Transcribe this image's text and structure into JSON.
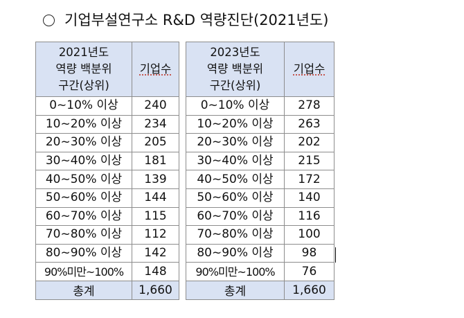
{
  "title": {
    "text": "기업부설연구소 R&D 역량진단(2021년도)"
  },
  "tables": [
    {
      "header": {
        "range_lines": [
          "2021년도",
          "역량 백분위",
          "구간(상위)"
        ],
        "count_label": "기업수"
      },
      "rows": [
        {
          "range": "0~10% 이상",
          "count": "240"
        },
        {
          "range": "10~20% 이상",
          "count": "234"
        },
        {
          "range": "20~30% 이상",
          "count": "205"
        },
        {
          "range": "30~40% 이상",
          "count": "181"
        },
        {
          "range": "40~50% 이상",
          "count": "139"
        },
        {
          "range": "50~60% 이상",
          "count": "144"
        },
        {
          "range": "60~70% 이상",
          "count": "115"
        },
        {
          "range": "70~80% 이상",
          "count": "112"
        },
        {
          "range": "80~90% 이상",
          "count": "142"
        },
        {
          "range": "90%미만~100%",
          "count": "148"
        }
      ],
      "total": {
        "label": "총계",
        "count": "1,660"
      }
    },
    {
      "header": {
        "range_lines": [
          "2023년도",
          "역량 백분위",
          "구간(상위)"
        ],
        "count_label": "기업수"
      },
      "rows": [
        {
          "range": "0~10% 이상",
          "count": "278"
        },
        {
          "range": "10~20% 이상",
          "count": "263"
        },
        {
          "range": "20~30% 이상",
          "count": "202"
        },
        {
          "range": "30~40% 이상",
          "count": "215"
        },
        {
          "range": "40~50% 이상",
          "count": "172"
        },
        {
          "range": "50~60% 이상",
          "count": "140"
        },
        {
          "range": "60~70% 이상",
          "count": "116"
        },
        {
          "range": "70~80% 이상",
          "count": "100"
        },
        {
          "range": "80~90% 이상",
          "count": "98"
        },
        {
          "range": "90%미만~100%",
          "count": "76"
        }
      ],
      "total": {
        "label": "총계",
        "count": "1,660"
      }
    }
  ],
  "colors": {
    "header_bg": "#d9e2f3",
    "border": "#8c8c8c"
  }
}
